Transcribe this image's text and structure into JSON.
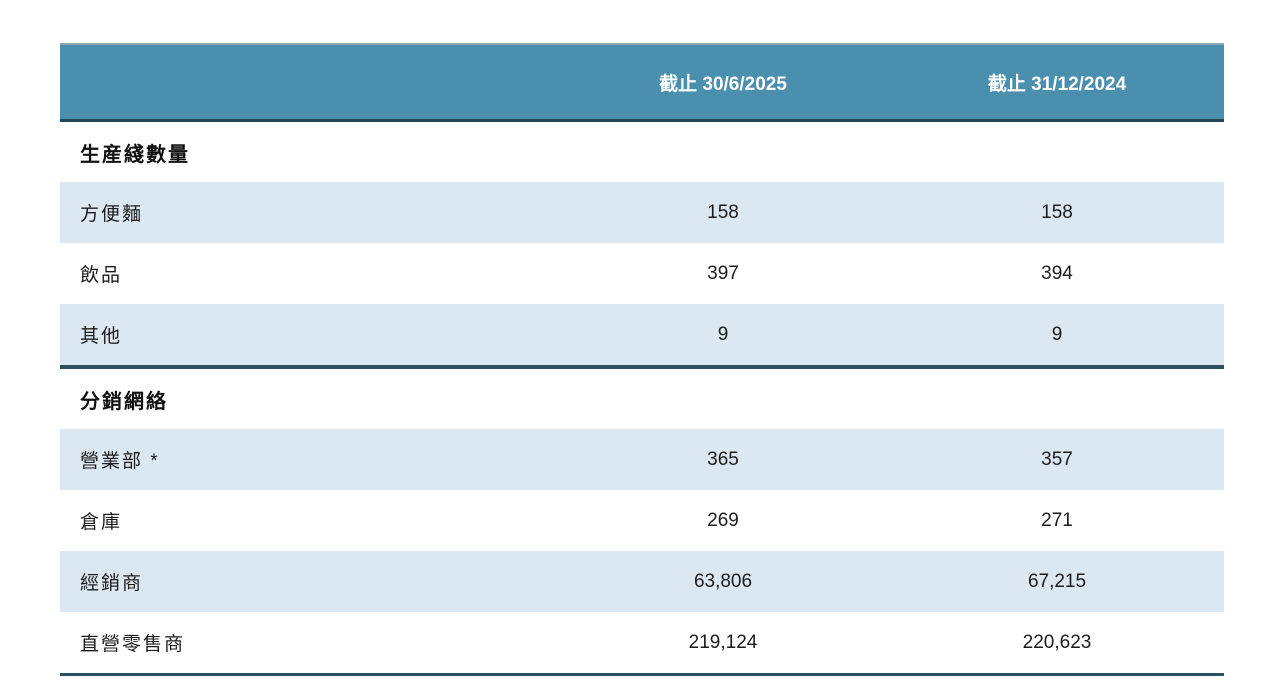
{
  "table": {
    "header": {
      "col_period_1": "截止 30/6/2025",
      "col_period_2": "截止 31/12/2024"
    },
    "sections": [
      {
        "title": "生産綫數量",
        "rows": [
          {
            "label": "方便麵",
            "values": [
              "158",
              "158"
            ]
          },
          {
            "label": "飲品",
            "values": [
              "397",
              "394"
            ]
          },
          {
            "label": "其他",
            "values": [
              "9",
              "9"
            ]
          }
        ]
      },
      {
        "title": "分銷網絡",
        "rows": [
          {
            "label": "營業部 *",
            "values": [
              "365",
              "357"
            ]
          },
          {
            "label": "倉庫",
            "values": [
              "269",
              "271"
            ]
          },
          {
            "label": "經銷商",
            "values": [
              "63,806",
              "67,215"
            ]
          },
          {
            "label": "直營零售商",
            "values": [
              "219,124",
              "220,623"
            ]
          }
        ]
      }
    ],
    "colors": {
      "header_bg": "#4a8fae",
      "header_text": "#ffffff",
      "alt_row_bg": "#dbe8f1",
      "dark_border": "#24465a",
      "text": "#1c1c1c"
    }
  }
}
